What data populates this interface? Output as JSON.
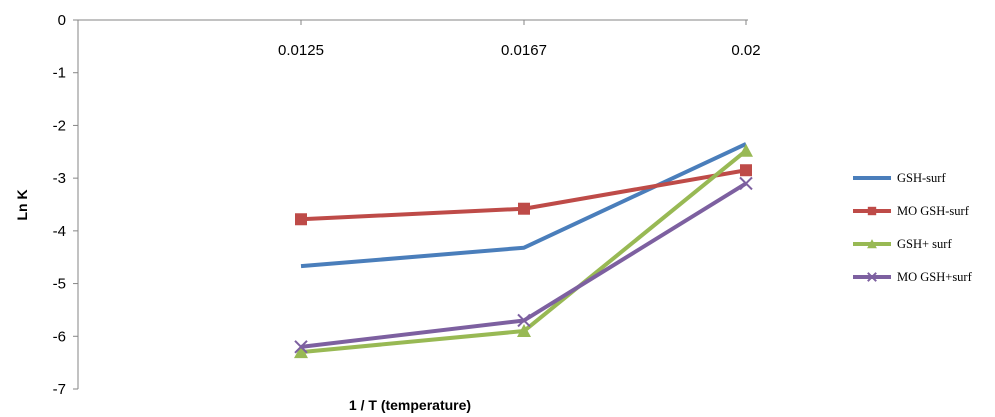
{
  "chart_data": {
    "type": "line",
    "title": "",
    "xlabel": "1 / T (temperature)",
    "ylabel": "Ln K",
    "categories": [
      "0.0125",
      "0.0167",
      "0.02"
    ],
    "ylim": [
      -7,
      0
    ],
    "yticks": [
      0,
      -1,
      -2,
      -3,
      -4,
      -5,
      -6,
      -7
    ],
    "x_axis_position": "top",
    "grid": false,
    "legend_position": "right",
    "series": [
      {
        "name": "GSH-surf",
        "values": [
          -4.67,
          -4.32,
          -2.35
        ],
        "color": "#4a7ebb",
        "marker": "none"
      },
      {
        "name": "MO GSH-surf",
        "values": [
          -3.78,
          -3.58,
          -2.85
        ],
        "color": "#be4b48",
        "marker": "square"
      },
      {
        "name": "GSH+ surf",
        "values": [
          -6.3,
          -5.9,
          -2.48
        ],
        "color": "#98b954",
        "marker": "triangle"
      },
      {
        "name": "MO GSH+surf",
        "values": [
          -6.2,
          -5.7,
          -3.1
        ],
        "color": "#7d60a0",
        "marker": "x"
      }
    ]
  }
}
